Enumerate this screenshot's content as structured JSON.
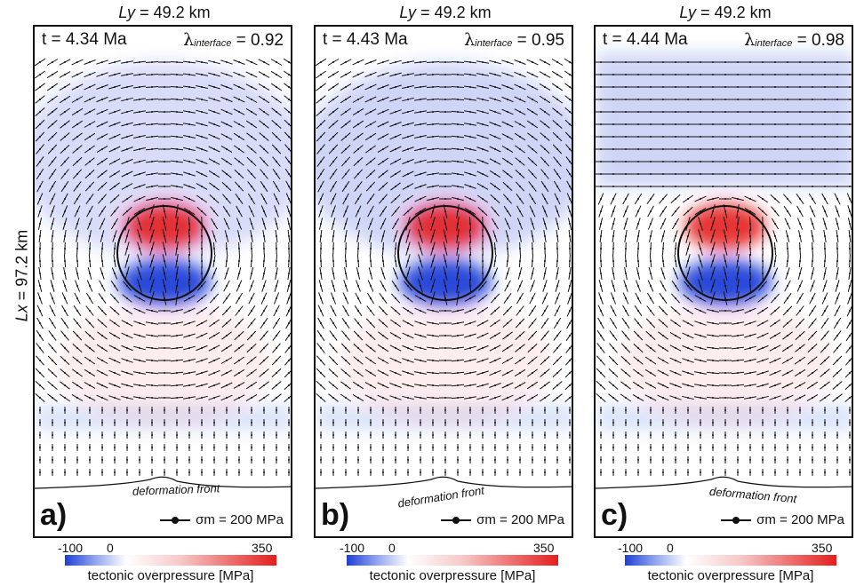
{
  "axis": {
    "ly_prefix": "Ly",
    "ly_value": "= 49.2 km",
    "lx_prefix": "Lx",
    "lx_value": "= 97.2 km"
  },
  "panels": [
    {
      "letter": "a)",
      "time": "t = 4.34 Ma",
      "lambda_symbol": "λ",
      "lambda_sub": "interface",
      "lambda_value": "= 0.92",
      "front_label": "deformation front",
      "scale_label": "σm = 200 MPa"
    },
    {
      "letter": "b)",
      "time": "t = 4.43 Ma",
      "lambda_symbol": "λ",
      "lambda_sub": "interface",
      "lambda_value": "= 0.95",
      "front_label": "deformation front",
      "scale_label": "σm = 200 MPa"
    },
    {
      "letter": "c)",
      "time": "t = 4.44 Ma",
      "lambda_symbol": "λ",
      "lambda_sub": "interface",
      "lambda_value": "= 0.98",
      "front_label": "deformation front",
      "scale_label": "σm = 200 MPa"
    }
  ],
  "colorbar": {
    "tick_min": "-100",
    "tick_zero": "0",
    "tick_max": "350",
    "caption": "tectonic overpressure [MPa]",
    "color_low": "#1f3fd8",
    "color_mid": "#ffffff",
    "color_high": "#e41e1e"
  }
}
